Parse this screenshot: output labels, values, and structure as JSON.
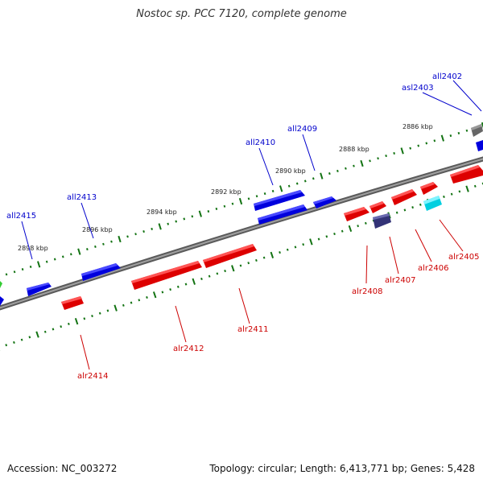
{
  "title": "Nostoc sp. PCC 7120, complete genome",
  "accession": "Accession: NC_003272",
  "topology": "Topology: circular; Length: 6,413,771 bp; Genes: 5,428",
  "colors": {
    "minus_strand": "#0a0ae6",
    "plus_strand": "#ec0d0d",
    "backbone": "#7a7a7a",
    "ticks": "#137313",
    "rna": "#16e0f0",
    "pseudo": "#3f3f8a",
    "other": "#777777",
    "highlight": "#33cc33"
  },
  "kbp_labels": [
    "2886 kbp",
    "2888 kbp",
    "2890 kbp",
    "2892 kbp",
    "2894 kbp",
    "2896 kbp",
    "2898 kbp"
  ],
  "genes_top": [
    "all2402",
    "asl2403",
    "all2409",
    "all2410",
    "all2413",
    "all2415"
  ],
  "genes_bottom": [
    "alr2405",
    "alr2406",
    "alr2407",
    "alr2408",
    "alr2411",
    "alr2412",
    "alr2414"
  ]
}
